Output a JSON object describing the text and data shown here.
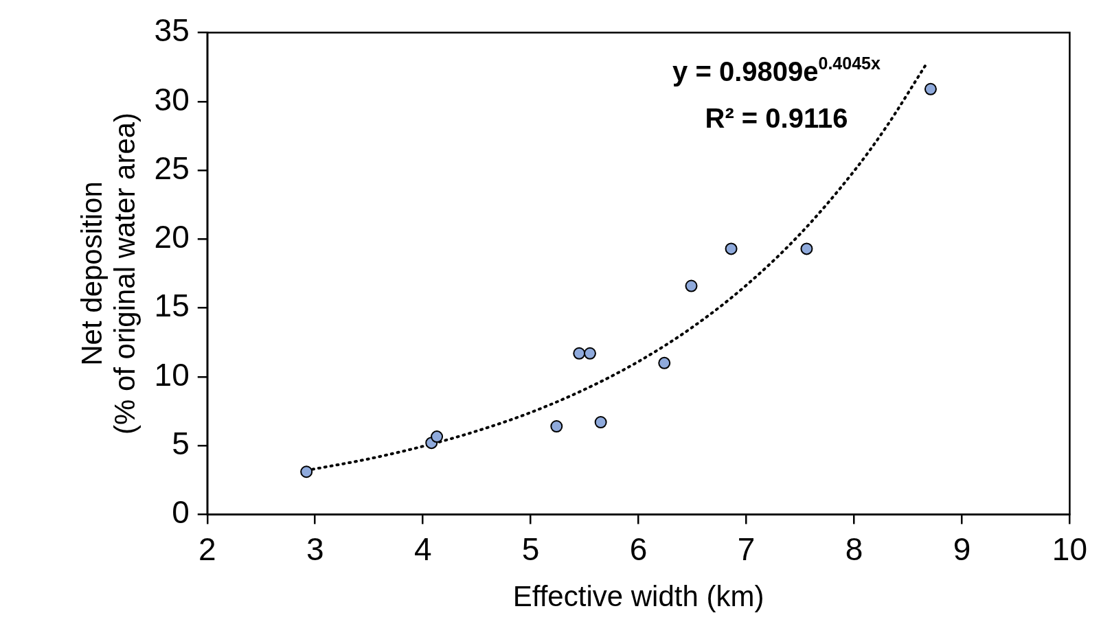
{
  "chart_data": {
    "type": "scatter",
    "xlabel": "Effective width (km)",
    "ylabel": "Net deposition\n(% of original water area)",
    "xlim": [
      2,
      10
    ],
    "xticks": [
      2,
      3,
      4,
      5,
      6,
      7,
      8,
      9,
      10
    ],
    "ylim": [
      0,
      35
    ],
    "yticks": [
      0,
      5,
      10,
      15,
      20,
      25,
      30,
      35
    ],
    "grid": false,
    "legend": false,
    "marker": "circle",
    "series": [
      {
        "color": "#8faadc",
        "x": [
          2.92,
          4.08,
          4.13,
          5.24,
          5.45,
          5.55,
          5.65,
          6.24,
          6.49,
          6.86,
          7.56,
          8.71
        ],
        "values": [
          3.1,
          5.2,
          5.65,
          6.4,
          11.7,
          11.7,
          6.7,
          11.0,
          16.6,
          19.3,
          19.3,
          30.9
        ]
      },
      {
        "type": "line",
        "color": "#000000",
        "line_style": "dotted",
        "marker": "none",
        "x": [
          2.92,
          3.5,
          4,
          4.5,
          5,
          5.5,
          6,
          6.5,
          7,
          7.5,
          8,
          8.3,
          8.66
        ],
        "values": [
          3.2,
          4.04,
          4.95,
          6.06,
          7.41,
          9.08,
          11.11,
          13.6,
          16.65,
          20.38,
          24.95,
          28.17,
          32.6
        ]
      }
    ],
    "annotations": [
      "y = 0.9809e$^{0.4045x}$",
      "R² = 0.9116"
    ]
  }
}
